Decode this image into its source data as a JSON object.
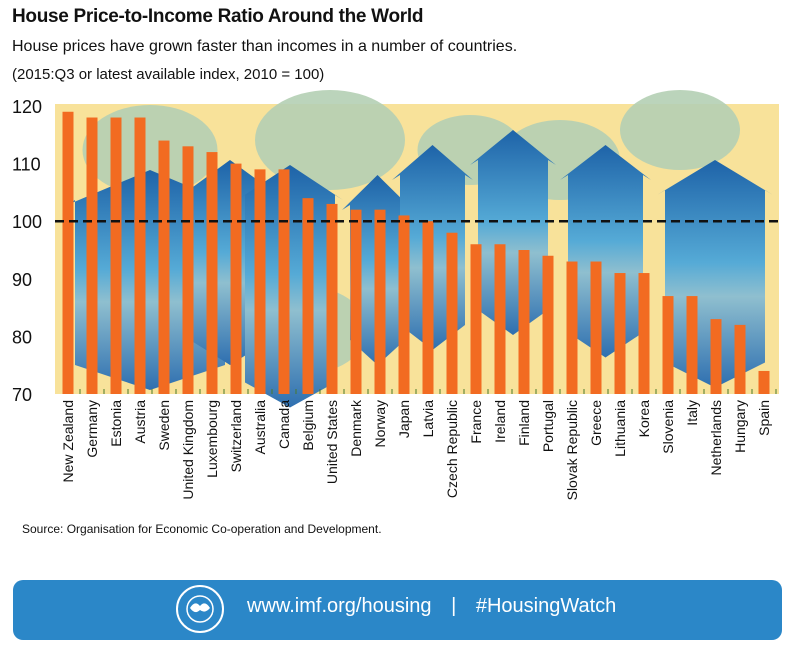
{
  "header": {
    "title": "House Price-to-Income Ratio Around the World",
    "subtitle": "House prices have grown faster than incomes in a number of countries.",
    "note": "(2015:Q3 or latest available index, 2010 = 100)"
  },
  "source": "Source: Organisation for Economic Co-operation and Development.",
  "footer": {
    "url": "www.imf.org/housing",
    "separator": "|",
    "hashtag": "#HousingWatch",
    "logo_text": "INTERNATIONAL MONETARY FUND"
  },
  "colors": {
    "bar": "#f26b21",
    "plot_bg": "#f8e29a",
    "house": "#2f7fc1",
    "tree": "#b4cfb4",
    "footer": "#2b87c8"
  },
  "chart_data": {
    "type": "bar",
    "title": "House Price-to-Income Ratio Around the World",
    "ylim": [
      70,
      120
    ],
    "yticks": [
      70,
      80,
      90,
      100,
      110,
      120
    ],
    "reference_line": 100,
    "grid": false,
    "categories": [
      "New Zealand",
      "Germany",
      "Estonia",
      "Austria",
      "Sweden",
      "United Kingdom",
      "Luxembourg",
      "Switzerland",
      "Australia",
      "Canada",
      "Belgium",
      "United States",
      "Denmark",
      "Norway",
      "Japan",
      "Latvia",
      "Czech Republic",
      "France",
      "Ireland",
      "Finland",
      "Portugal",
      "Slovak Republic",
      "Greece",
      "Lithuania",
      "Korea",
      "Slovenia",
      "Italy",
      "Netherlands",
      "Hungary",
      "Spain"
    ],
    "values": [
      119,
      118,
      118,
      118,
      114,
      113,
      112,
      110,
      109,
      109,
      104,
      103,
      102,
      102,
      101,
      100,
      98,
      96,
      96,
      95,
      94,
      93,
      93,
      91,
      91,
      87,
      87,
      83,
      82,
      74
    ]
  }
}
